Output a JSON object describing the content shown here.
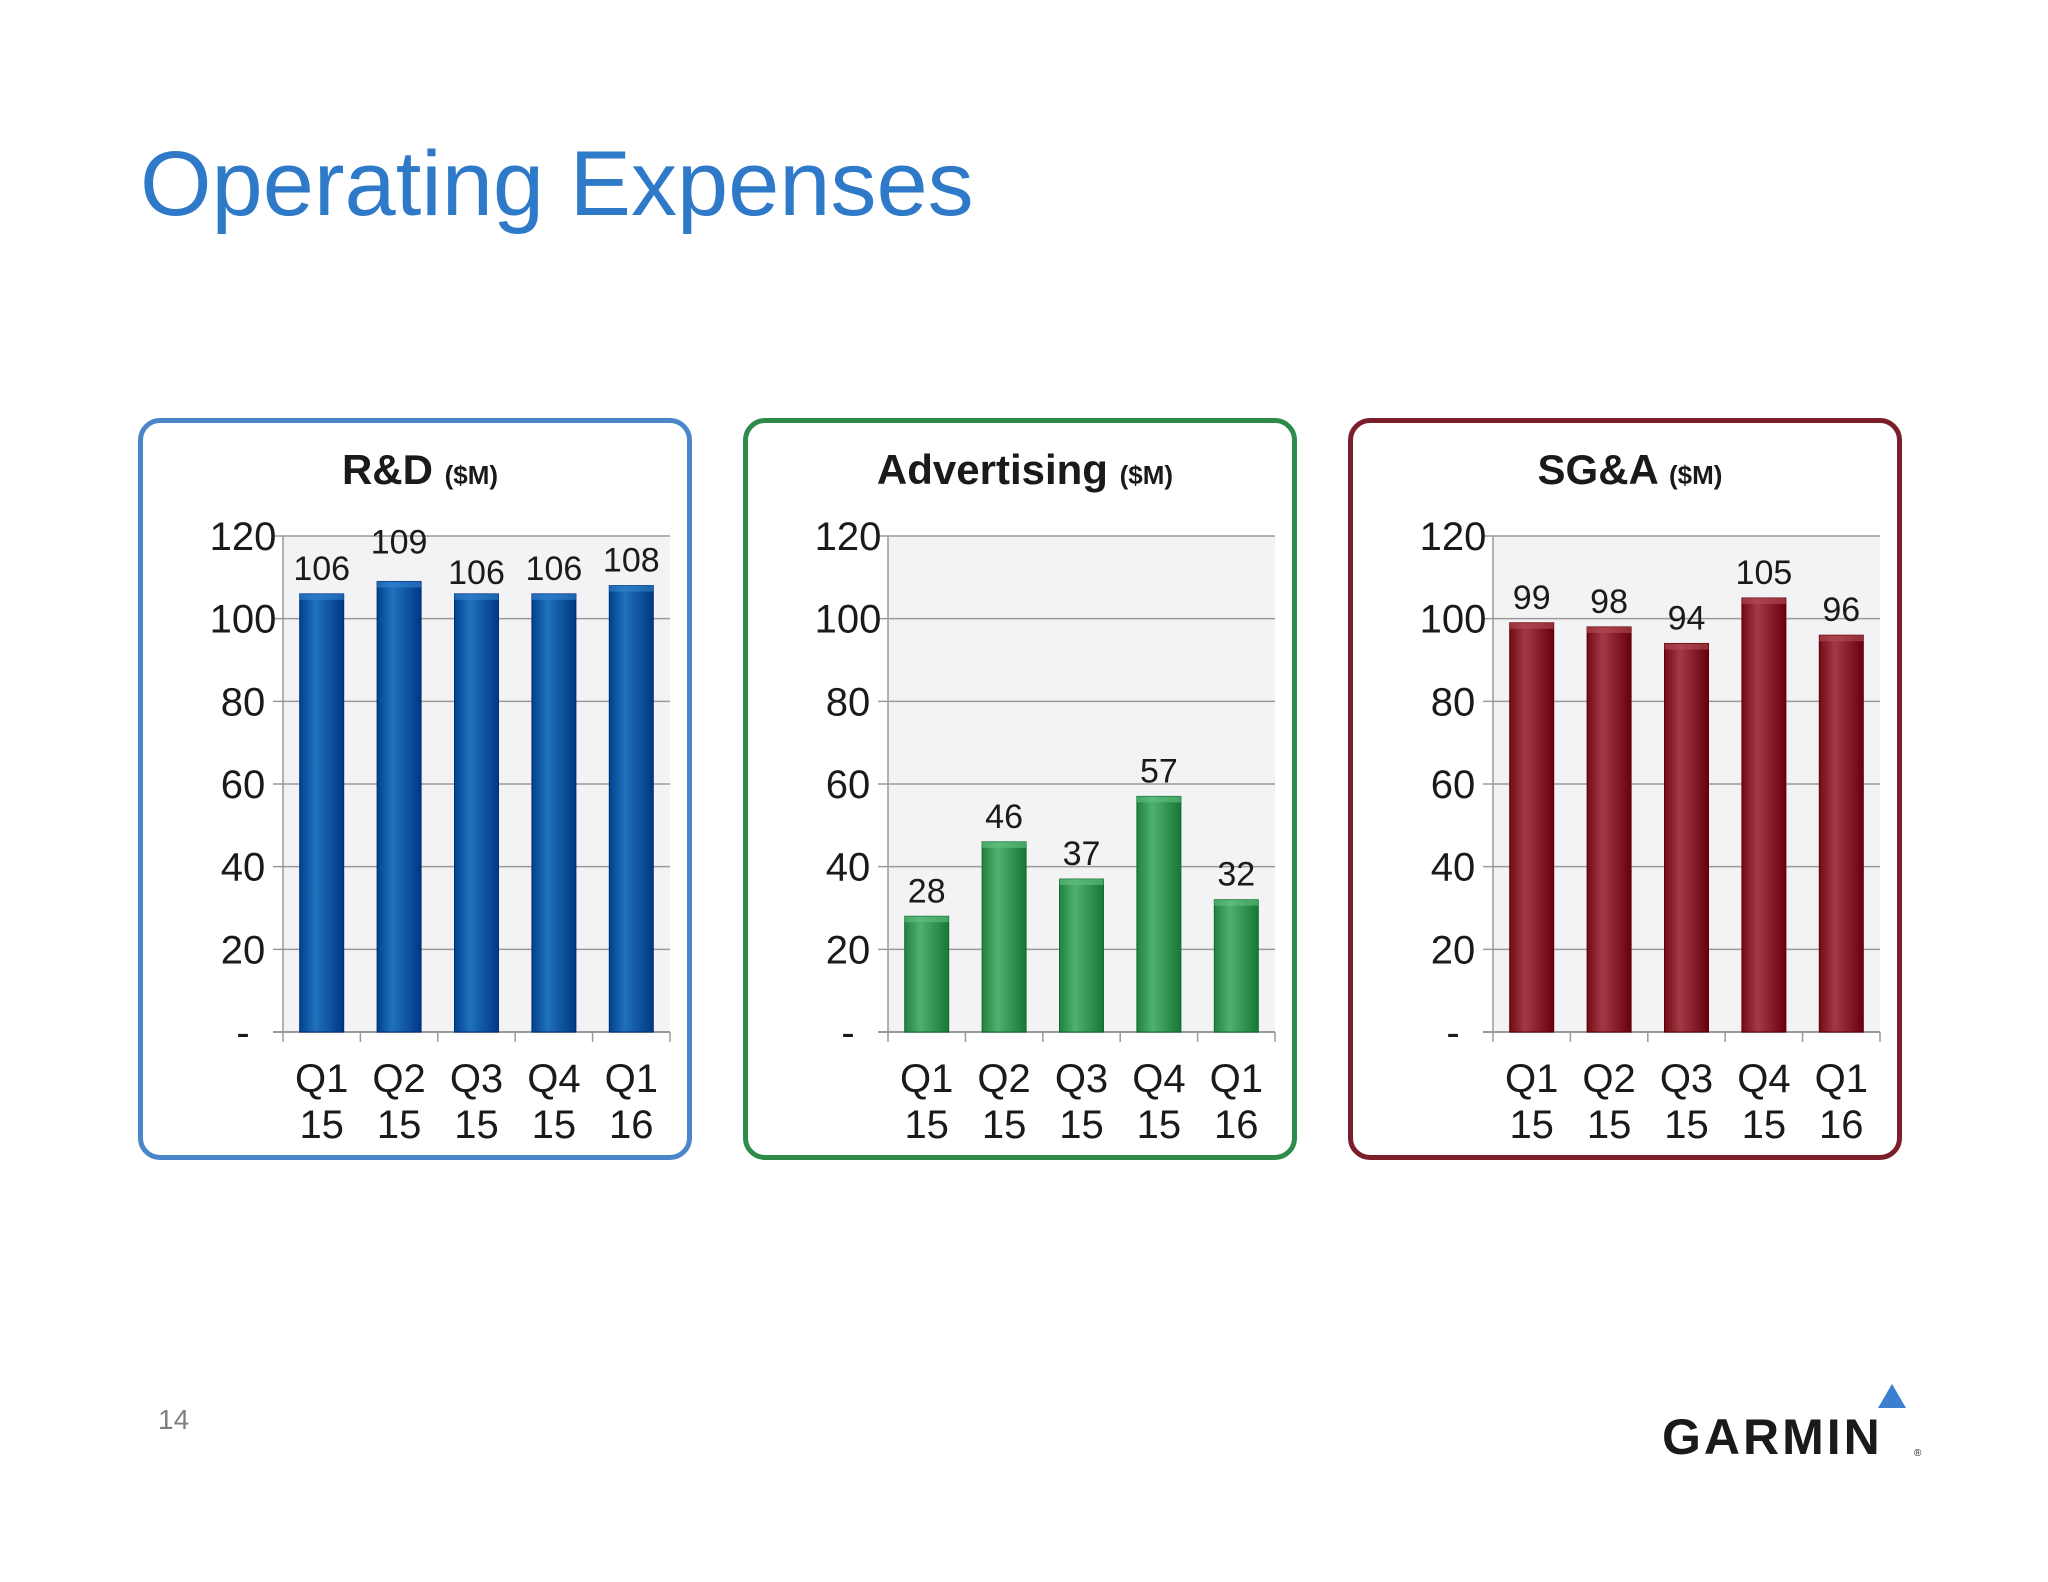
{
  "slide": {
    "title": "Operating Expenses",
    "page_number": "14",
    "logo_text": "GARMIN",
    "logo_mark": "®"
  },
  "colors": {
    "title": "#2e7ac9",
    "rd_border": "#4a86c8",
    "adv_border": "#2e8b4a",
    "sga_border": "#7a1f2b",
    "rd_bar": "#0a5ba6",
    "adv_bar": "#3a9a5a",
    "sga_bar": "#8c2430",
    "logo_triangle": "#3a7fd0"
  },
  "chart_data": [
    {
      "type": "bar",
      "title": "R&D",
      "unit": "($M)",
      "categories": [
        [
          "Q1",
          "15"
        ],
        [
          "Q2",
          "15"
        ],
        [
          "Q3",
          "15"
        ],
        [
          "Q4",
          "15"
        ],
        [
          "Q1",
          "16"
        ]
      ],
      "values": [
        106,
        109,
        106,
        106,
        108
      ],
      "ylim": [
        0,
        120
      ],
      "yticks": [
        "-",
        "20",
        "40",
        "60",
        "80",
        "100",
        "120"
      ],
      "grid": true,
      "color": "#0a5ba6",
      "border": "#4a86c8"
    },
    {
      "type": "bar",
      "title": "Advertising",
      "unit": "($M)",
      "categories": [
        [
          "Q1",
          "15"
        ],
        [
          "Q2",
          "15"
        ],
        [
          "Q3",
          "15"
        ],
        [
          "Q4",
          "15"
        ],
        [
          "Q1",
          "16"
        ]
      ],
      "values": [
        28,
        46,
        37,
        57,
        32
      ],
      "ylim": [
        0,
        120
      ],
      "yticks": [
        "-",
        "20",
        "40",
        "60",
        "80",
        "100",
        "120"
      ],
      "grid": true,
      "color": "#3a9a5a",
      "border": "#2e8b4a"
    },
    {
      "type": "bar",
      "title": "SG&A",
      "unit": "($M)",
      "categories": [
        [
          "Q1",
          "15"
        ],
        [
          "Q2",
          "15"
        ],
        [
          "Q3",
          "15"
        ],
        [
          "Q4",
          "15"
        ],
        [
          "Q1",
          "16"
        ]
      ],
      "values": [
        99,
        98,
        94,
        105,
        96
      ],
      "ylim": [
        0,
        120
      ],
      "yticks": [
        "-",
        "20",
        "40",
        "60",
        "80",
        "100",
        "120"
      ],
      "grid": true,
      "color": "#8c2430",
      "border": "#7a1f2b"
    }
  ]
}
